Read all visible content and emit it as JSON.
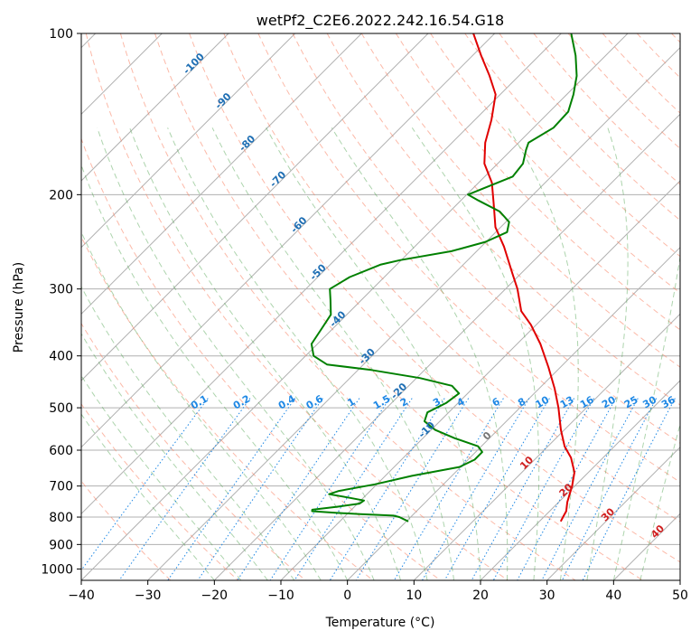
{
  "chart_data": {
    "type": "line",
    "title": "wetPf2_C2E6.2022.242.16.54.G18",
    "xlabel": "Temperature (°C)",
    "ylabel": "Pressure (hPa)",
    "xlim": [
      -40,
      50
    ],
    "ylim": [
      1050,
      100
    ],
    "y_scale": "log",
    "grid": true,
    "x_ticks": [
      -40,
      -30,
      -20,
      -10,
      0,
      10,
      20,
      30,
      40,
      50
    ],
    "y_ticks": [
      1000,
      900,
      800,
      700,
      600,
      500,
      400,
      300,
      200,
      100
    ],
    "x_tick_labels": [
      "−40",
      "−30",
      "−20",
      "−10",
      "0",
      "10",
      "20",
      "30",
      "40",
      "50"
    ],
    "y_tick_labels": [
      "1000",
      "900",
      "800",
      "700",
      "600",
      "500",
      "400",
      "300",
      "200",
      "100"
    ],
    "skew_degrees": 45,
    "isotherms": [
      -100,
      -90,
      -80,
      -70,
      -60,
      -50,
      -40,
      -30,
      -20,
      -10,
      0,
      10,
      20,
      30,
      40
    ],
    "mixing_ratio_labels": [
      "0.1",
      "0.2",
      "0.4",
      "0.6",
      "1",
      "1.5",
      "2",
      "3",
      "4",
      "6",
      "8",
      "10",
      "13",
      "16",
      "20",
      "25",
      "30",
      "36"
    ],
    "mixing_ratio_values": [
      0.1,
      0.2,
      0.4,
      0.6,
      1,
      1.5,
      2,
      3,
      4,
      6,
      8,
      10,
      13,
      16,
      20,
      25,
      30,
      36
    ],
    "series": [
      {
        "name": "",
        "color": "#e00000",
        "points": [
          {
            "p": 815,
            "t": 23.2
          },
          {
            "p": 800,
            "t": 22.9
          },
          {
            "p": 780,
            "t": 22.5
          },
          {
            "p": 750,
            "t": 21.3
          },
          {
            "p": 700,
            "t": 19.6
          },
          {
            "p": 660,
            "t": 17.9
          },
          {
            "p": 620,
            "t": 15.2
          },
          {
            "p": 590,
            "t": 12.5
          },
          {
            "p": 550,
            "t": 9.5
          },
          {
            "p": 500,
            "t": 5.8
          },
          {
            "p": 460,
            "t": 2.3
          },
          {
            "p": 420,
            "t": -1.8
          },
          {
            "p": 380,
            "t": -6.5
          },
          {
            "p": 350,
            "t": -10.8
          },
          {
            "p": 330,
            "t": -14.3
          },
          {
            "p": 300,
            "t": -18.2
          },
          {
            "p": 280,
            "t": -21.4
          },
          {
            "p": 250,
            "t": -26.6
          },
          {
            "p": 230,
            "t": -30.8
          },
          {
            "p": 210,
            "t": -34.2
          },
          {
            "p": 190,
            "t": -38.0
          },
          {
            "p": 175,
            "t": -42.0
          },
          {
            "p": 160,
            "t": -45.0
          },
          {
            "p": 145,
            "t": -47.5
          },
          {
            "p": 130,
            "t": -50.7
          },
          {
            "p": 120,
            "t": -54.4
          },
          {
            "p": 110,
            "t": -58.7
          },
          {
            "p": 100,
            "t": -63.2
          }
        ]
      },
      {
        "name": "",
        "color": "#008000",
        "points": [
          {
            "p": 815,
            "t": 0.3
          },
          {
            "p": 800,
            "t": -1.7
          },
          {
            "p": 795,
            "t": -2.8
          },
          {
            "p": 790,
            "t": -8.0
          },
          {
            "p": 785,
            "t": -12.0
          },
          {
            "p": 780,
            "t": -15.7
          },
          {
            "p": 775,
            "t": -15.9
          },
          {
            "p": 765,
            "t": -12.5
          },
          {
            "p": 755,
            "t": -9.7
          },
          {
            "p": 745,
            "t": -9.5
          },
          {
            "p": 735,
            "t": -12.5
          },
          {
            "p": 725,
            "t": -15.7
          },
          {
            "p": 715,
            "t": -14.7
          },
          {
            "p": 695,
            "t": -10.3
          },
          {
            "p": 670,
            "t": -6.0
          },
          {
            "p": 645,
            "t": -0.2
          },
          {
            "p": 625,
            "t": 1.0
          },
          {
            "p": 605,
            "t": 1.0
          },
          {
            "p": 590,
            "t": -0.5
          },
          {
            "p": 570,
            "t": -5.2
          },
          {
            "p": 550,
            "t": -9.4
          },
          {
            "p": 530,
            "t": -12.3
          },
          {
            "p": 510,
            "t": -13.2
          },
          {
            "p": 490,
            "t": -11.8
          },
          {
            "p": 470,
            "t": -11.3
          },
          {
            "p": 455,
            "t": -13.5
          },
          {
            "p": 440,
            "t": -19.5
          },
          {
            "p": 425,
            "t": -28.0
          },
          {
            "p": 415,
            "t": -35.5
          },
          {
            "p": 400,
            "t": -38.8
          },
          {
            "p": 380,
            "t": -40.9
          },
          {
            "p": 355,
            "t": -41.7
          },
          {
            "p": 335,
            "t": -42.4
          },
          {
            "p": 315,
            "t": -44.6
          },
          {
            "p": 300,
            "t": -46.4
          },
          {
            "p": 285,
            "t": -45.2
          },
          {
            "p": 270,
            "t": -42.4
          },
          {
            "p": 265,
            "t": -40.2
          },
          {
            "p": 255,
            "t": -33.8
          },
          {
            "p": 245,
            "t": -30.1
          },
          {
            "p": 235,
            "t": -28.3
          },
          {
            "p": 225,
            "t": -29.5
          },
          {
            "p": 215,
            "t": -32.5
          },
          {
            "p": 205,
            "t": -37.4
          },
          {
            "p": 200,
            "t": -39.8
          },
          {
            "p": 195,
            "t": -38.5
          },
          {
            "p": 185,
            "t": -35.8
          },
          {
            "p": 175,
            "t": -36.2
          },
          {
            "p": 165,
            "t": -37.8
          },
          {
            "p": 160,
            "t": -38.5
          },
          {
            "p": 150,
            "t": -37.0
          },
          {
            "p": 140,
            "t": -37.2
          },
          {
            "p": 130,
            "t": -39.0
          },
          {
            "p": 120,
            "t": -41.3
          },
          {
            "p": 110,
            "t": -44.5
          },
          {
            "p": 100,
            "t": -48.5
          }
        ]
      }
    ]
  },
  "colors": {
    "temperature": "#e00000",
    "dewpoint": "#008000",
    "isotherm_label": "#1f6fb4",
    "mixing_ratio": "#1e88e5",
    "dry_adiabat": "#fa8060",
    "moist_adiabat": "#4aa04a",
    "grid": "#b0b0b0",
    "hot_label": "#d02020"
  }
}
